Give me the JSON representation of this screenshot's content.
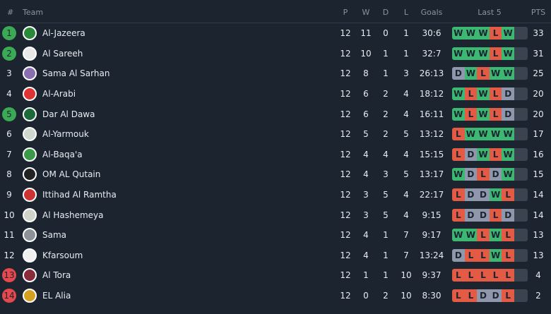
{
  "header": {
    "pos": "#",
    "team": "Team",
    "p": "P",
    "w": "W",
    "d": "D",
    "l": "L",
    "goals": "Goals",
    "last5": "Last 5",
    "pts": "PTS"
  },
  "colors": {
    "win": "#3cb873",
    "loss": "#e35b45",
    "draw": "#8e97ab",
    "promotion_badge": "#3aaa55",
    "relegation_badge": "#e5484d"
  },
  "rows": [
    {
      "pos": "1",
      "team": "Al-Jazeera",
      "p": "12",
      "w": "11",
      "d": "0",
      "l": "1",
      "goals": "30:6",
      "form": [
        "W",
        "W",
        "W",
        "L",
        "W"
      ],
      "pts": "33",
      "badge": "green",
      "logo": "#2a8a3a"
    },
    {
      "pos": "2",
      "team": "Al Sareeh",
      "p": "12",
      "w": "10",
      "d": "1",
      "l": "1",
      "goals": "32:7",
      "form": [
        "W",
        "W",
        "W",
        "L",
        "W"
      ],
      "pts": "31",
      "badge": "green",
      "logo": "#e8e8e8"
    },
    {
      "pos": "3",
      "team": "Sama Al Sarhan",
      "p": "12",
      "w": "8",
      "d": "1",
      "l": "3",
      "goals": "26:13",
      "form": [
        "D",
        "W",
        "L",
        "W",
        "W"
      ],
      "pts": "25",
      "badge": "",
      "logo": "#8a6fb0"
    },
    {
      "pos": "4",
      "team": "Al-Arabi",
      "p": "12",
      "w": "6",
      "d": "2",
      "l": "4",
      "goals": "18:12",
      "form": [
        "W",
        "L",
        "W",
        "L",
        "D"
      ],
      "pts": "20",
      "badge": "",
      "logo": "#d33"
    },
    {
      "pos": "5",
      "team": "Dar Al Dawa",
      "p": "12",
      "w": "6",
      "d": "2",
      "l": "4",
      "goals": "16:11",
      "form": [
        "W",
        "L",
        "W",
        "L",
        "D"
      ],
      "pts": "20",
      "badge": "green",
      "logo": "#1a6a3a"
    },
    {
      "pos": "6",
      "team": "Al-Yarmouk",
      "p": "12",
      "w": "5",
      "d": "2",
      "l": "5",
      "goals": "13:12",
      "form": [
        "L",
        "W",
        "W",
        "W",
        "W"
      ],
      "pts": "17",
      "badge": "",
      "logo": "#cfd8cf"
    },
    {
      "pos": "7",
      "team": "Al-Baqa'a",
      "p": "12",
      "w": "4",
      "d": "4",
      "l": "4",
      "goals": "15:15",
      "form": [
        "L",
        "D",
        "W",
        "L",
        "W"
      ],
      "pts": "16",
      "badge": "",
      "logo": "#3a9a4a"
    },
    {
      "pos": "8",
      "team": "OM AL Qutain",
      "p": "12",
      "w": "4",
      "d": "3",
      "l": "5",
      "goals": "13:17",
      "form": [
        "W",
        "D",
        "L",
        "D",
        "W"
      ],
      "pts": "15",
      "badge": "",
      "logo": "#222"
    },
    {
      "pos": "9",
      "team": "Ittihad Al Ramtha",
      "p": "12",
      "w": "3",
      "d": "5",
      "l": "4",
      "goals": "22:17",
      "form": [
        "L",
        "D",
        "D",
        "W",
        "L"
      ],
      "pts": "14",
      "badge": "",
      "logo": "#c33"
    },
    {
      "pos": "10",
      "team": "Al Hashemeya",
      "p": "12",
      "w": "3",
      "d": "5",
      "l": "4",
      "goals": "9:15",
      "form": [
        "L",
        "D",
        "D",
        "L",
        "D"
      ],
      "pts": "14",
      "badge": "",
      "logo": "#cfd3c8"
    },
    {
      "pos": "11",
      "team": "Sama",
      "p": "12",
      "w": "4",
      "d": "1",
      "l": "7",
      "goals": "9:17",
      "form": [
        "W",
        "W",
        "L",
        "W",
        "L"
      ],
      "pts": "13",
      "badge": "",
      "logo": "#8c919a"
    },
    {
      "pos": "12",
      "team": "Kfarsoum",
      "p": "12",
      "w": "4",
      "d": "1",
      "l": "7",
      "goals": "13:24",
      "form": [
        "D",
        "L",
        "L",
        "W",
        "L"
      ],
      "pts": "13",
      "badge": "",
      "logo": "#f0f0f0"
    },
    {
      "pos": "13",
      "team": "Al Tora",
      "p": "12",
      "w": "1",
      "d": "1",
      "l": "10",
      "goals": "9:37",
      "form": [
        "L",
        "L",
        "L",
        "L",
        "L"
      ],
      "pts": "4",
      "badge": "red",
      "logo": "#8a2a3a"
    },
    {
      "pos": "14",
      "team": "EL Alia",
      "p": "12",
      "w": "0",
      "d": "2",
      "l": "10",
      "goals": "8:30",
      "form": [
        "L",
        "L",
        "D",
        "D",
        "L"
      ],
      "pts": "2",
      "badge": "red",
      "logo": "#d4a020"
    }
  ]
}
